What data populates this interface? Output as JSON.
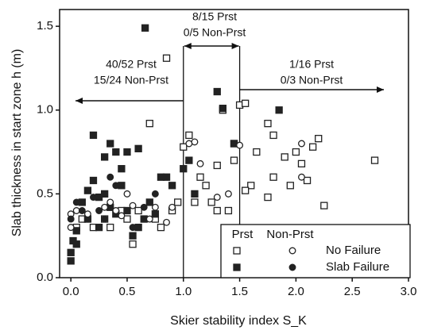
{
  "chart_data": {
    "type": "scatter",
    "xlabel": "Skier stability index S_K",
    "ylabel": "Slab thickness in start zone h (m)",
    "xlim": [
      -0.1,
      3.0
    ],
    "ylim": [
      0,
      1.6
    ],
    "xticks": [
      {
        "value": 0,
        "label": "0.0"
      },
      {
        "value": 0.5,
        "label": "0.5"
      },
      {
        "value": 1,
        "label": "1.0"
      },
      {
        "value": 1.5,
        "label": "1.5"
      },
      {
        "value": 2,
        "label": "2.0"
      },
      {
        "value": 2.5,
        "label": "2.5"
      },
      {
        "value": 3,
        "label": "3.0"
      }
    ],
    "yticks": [
      {
        "value": 0,
        "label": "0.0"
      },
      {
        "value": 0.5,
        "label": "0.5"
      },
      {
        "value": 1,
        "label": "1.0"
      },
      {
        "value": 1.5,
        "label": "1.5"
      }
    ],
    "thresholds": [
      1.0,
      1.5
    ],
    "annotations": [
      "40/52 Prst",
      "15/24 Non-Prst",
      "8/15 Prst",
      "0/5 Non-Prst",
      "1/16 Prst",
      "0/3 Non-Prst"
    ],
    "legend": {
      "columns": [
        "Prst",
        "Non-Prst"
      ],
      "rows": [
        "No Failure",
        "Slab Failure"
      ]
    },
    "series": [
      {
        "legend_column": 0,
        "legend_row": 0,
        "color": "#222",
        "x": [
          0.05,
          0.1,
          0.2,
          0.3,
          0.35,
          0.45,
          0.5,
          0.55,
          0.6,
          0.7,
          0.75,
          0.8,
          0.9,
          0.95,
          1.0,
          1.05,
          1.1,
          1.15,
          1.2,
          1.25,
          1.3,
          1.35,
          1.4,
          1.45,
          0.85,
          1.5,
          1.55,
          1.6,
          1.55,
          1.75,
          1.8,
          1.8,
          1.75,
          1.9,
          2.0,
          2.05,
          2.1,
          2.15,
          2.2,
          2.25,
          2.7,
          1.95,
          1.65,
          1.45,
          1.3
        ],
        "values": [
          0.3,
          0.35,
          0.3,
          0.35,
          0.3,
          0.4,
          0.35,
          0.2,
          0.4,
          0.92,
          0.35,
          0.3,
          0.4,
          0.45,
          0.78,
          0.85,
          0.45,
          0.6,
          0.55,
          0.45,
          0.4,
          1.0,
          0.4,
          0.7,
          1.31,
          1.03,
          1.04,
          0.55,
          0.52,
          0.92,
          0.85,
          0.6,
          0.48,
          0.72,
          0.75,
          0.68,
          0.58,
          0.78,
          0.83,
          0.43,
          0.7,
          0.55,
          0.75,
          0.8,
          0.67
        ]
      },
      {
        "legend_column": 0,
        "legend_row": 1,
        "color": "#222",
        "x": [
          0.66,
          0.0,
          0.0,
          0.02,
          0.05,
          0.1,
          0.15,
          0.2,
          0.25,
          0.3,
          0.35,
          0.4,
          0.45,
          0.5,
          0.55,
          0.6,
          0.65,
          0.7,
          0.75,
          0.8,
          0.85,
          0.9,
          0.2,
          0.35,
          0.4,
          0.5,
          0.6,
          0.45,
          0.3,
          1.0,
          1.05,
          1.1,
          1.3,
          1.35,
          1.45,
          1.85,
          0.15,
          0.25,
          0.05
        ],
        "values": [
          1.49,
          0.1,
          0.15,
          0.22,
          0.28,
          0.45,
          0.52,
          0.58,
          0.48,
          0.5,
          0.42,
          0.38,
          0.55,
          0.4,
          0.25,
          0.3,
          0.35,
          0.45,
          0.38,
          0.6,
          0.6,
          0.55,
          0.85,
          0.8,
          0.75,
          0.75,
          0.77,
          0.65,
          0.72,
          0.65,
          0.7,
          0.5,
          1.11,
          1.01,
          0.8,
          1.0,
          0.35,
          0.3,
          0.2
        ]
      },
      {
        "legend_column": 1,
        "legend_row": 0,
        "color": "#222",
        "x": [
          0.0,
          0.0,
          0.05,
          0.15,
          0.3,
          0.4,
          0.45,
          0.55,
          0.7,
          0.75,
          0.85,
          0.9,
          1.05,
          1.1,
          1.15,
          1.3,
          1.4,
          1.5,
          2.05,
          2.05,
          0.35,
          0.5
        ],
        "values": [
          0.3,
          0.38,
          0.4,
          0.38,
          0.42,
          0.4,
          0.37,
          0.43,
          0.35,
          0.42,
          0.33,
          0.42,
          0.8,
          0.81,
          0.68,
          0.48,
          0.5,
          0.79,
          0.8,
          0.6,
          0.45,
          0.5
        ]
      },
      {
        "legend_column": 1,
        "legend_row": 1,
        "color": "#222",
        "x": [
          0.0,
          0.05,
          0.2,
          0.35,
          0.4,
          0.55,
          0.65,
          0.75,
          0.25,
          0.1,
          0.3
        ],
        "values": [
          0.35,
          0.45,
          0.48,
          0.6,
          0.55,
          0.3,
          0.42,
          0.5,
          0.4,
          0.4,
          0.35
        ]
      }
    ]
  }
}
